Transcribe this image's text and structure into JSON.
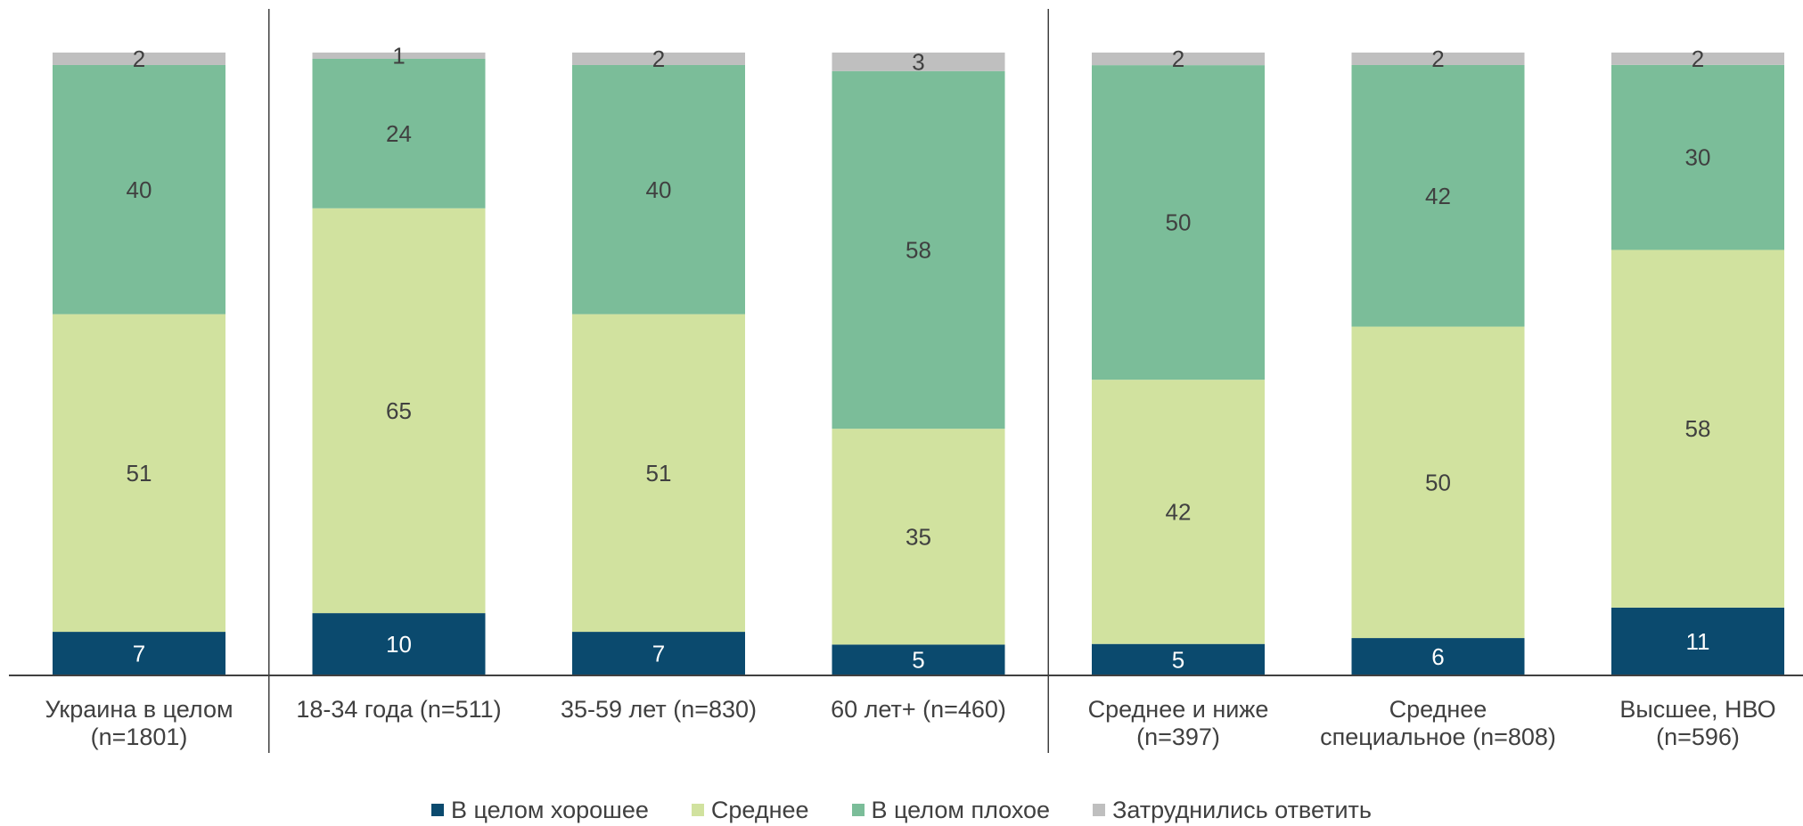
{
  "chart_data": {
    "type": "bar",
    "stacked": true,
    "categories": [
      "Украина в целом (n=1801)",
      "18-34 года (n=511)",
      "35-59 лет (n=830)",
      "60 лет+ (n=460)",
      "Среднее и ниже (n=397)",
      "Среднее специальное (n=808)",
      "Высшее, НВО (n=596)"
    ],
    "category_lines": [
      [
        "Украина в целом",
        "(n=1801)"
      ],
      [
        "18-34 года (n=511)"
      ],
      [
        "35-59 лет (n=830)"
      ],
      [
        "60 лет+ (n=460)"
      ],
      [
        "Среднее и ниже",
        "(n=397)"
      ],
      [
        "Среднее",
        "специальное (n=808)"
      ],
      [
        "Высшее, НВО",
        "(n=596)"
      ]
    ],
    "series": [
      {
        "name": "В целом хорошее",
        "color": "#0b4a6e",
        "label_color": "#ffffff",
        "values": [
          7,
          10,
          7,
          5,
          5,
          6,
          11
        ]
      },
      {
        "name": "Среднее",
        "color": "#d1e29f",
        "label_color": "#404040",
        "values": [
          51,
          65,
          51,
          35,
          42,
          50,
          58
        ]
      },
      {
        "name": "В целом плохое",
        "color": "#7bbd99",
        "label_color": "#404040",
        "values": [
          40,
          24,
          40,
          58,
          50,
          42,
          30
        ]
      },
      {
        "name": "Затруднились ответить",
        "color": "#bfbfbf",
        "label_color": "#404040",
        "values": [
          2,
          1,
          2,
          3,
          2,
          2,
          2
        ]
      }
    ],
    "group_separators_after": [
      0,
      3
    ],
    "legend_position": "bottom",
    "grid": false,
    "title": "",
    "xlabel": "",
    "ylabel": ""
  }
}
